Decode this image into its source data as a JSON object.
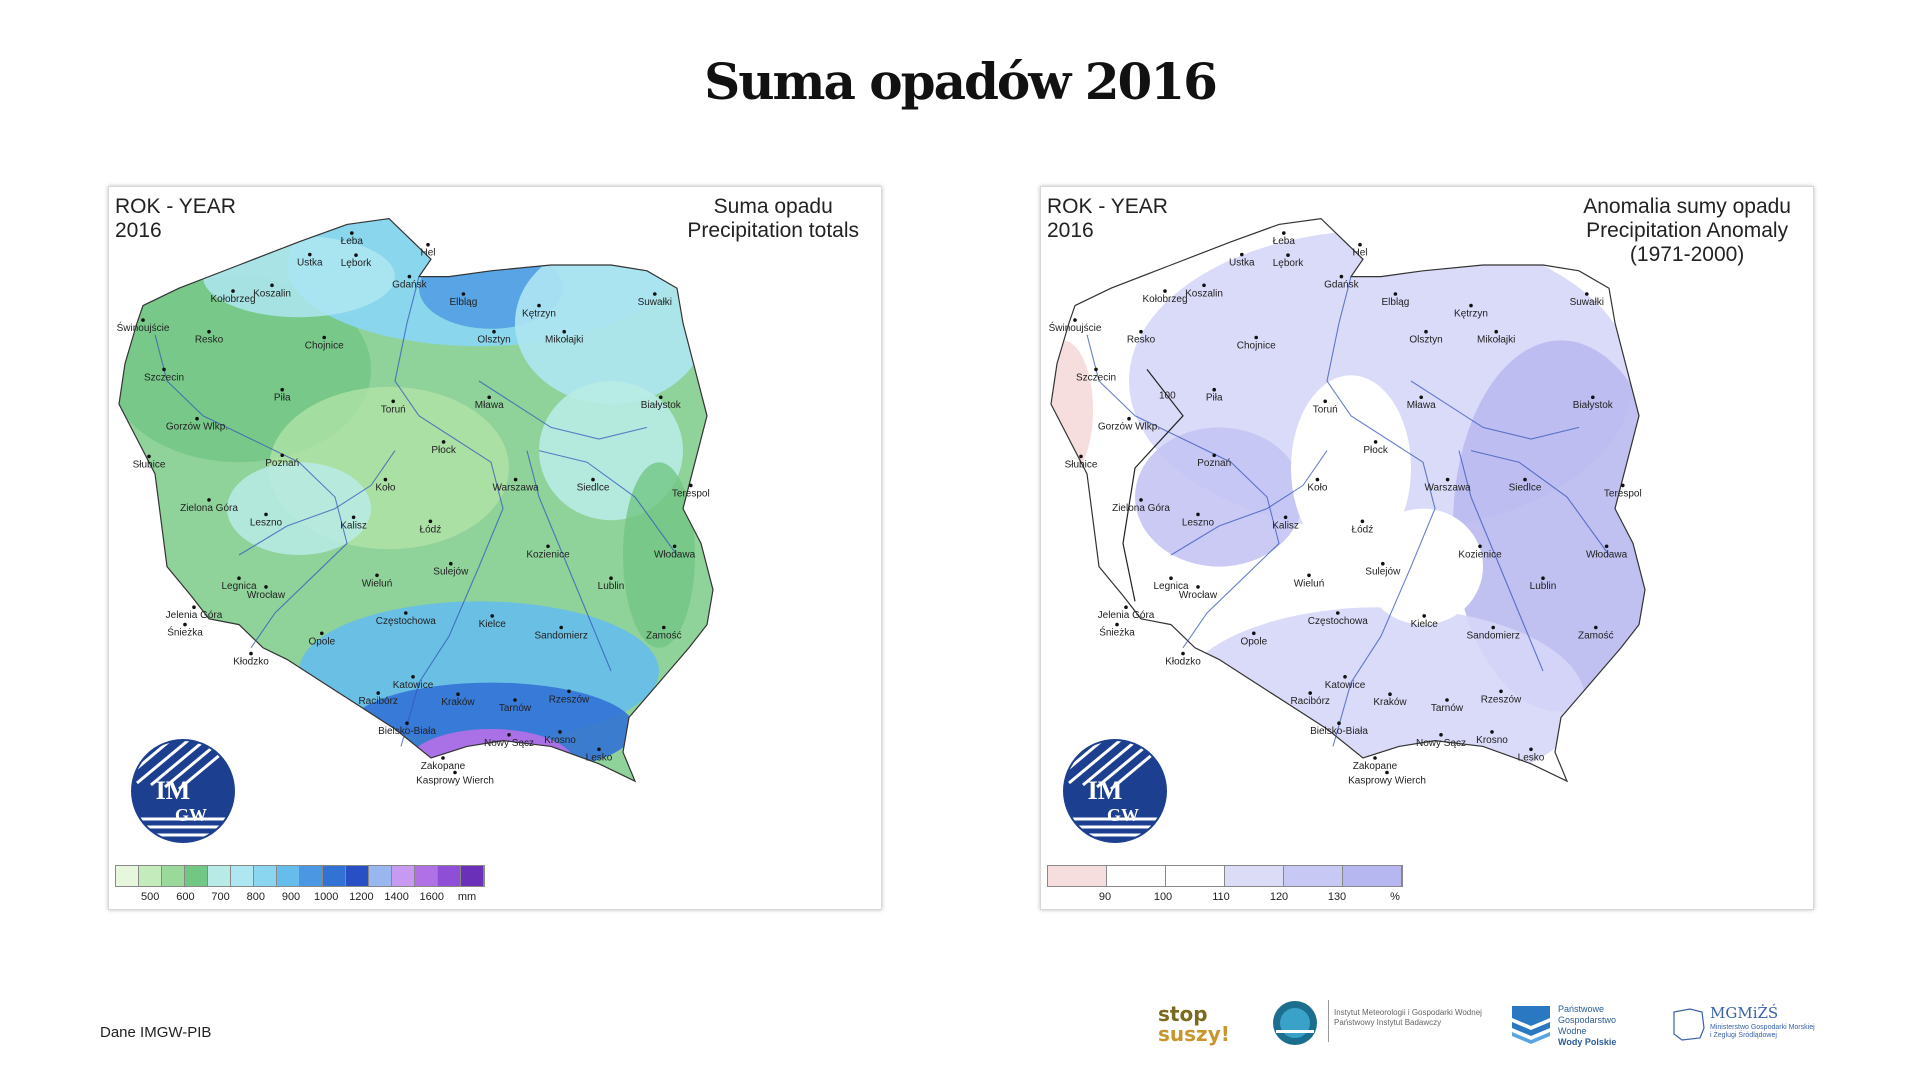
{
  "page_title": "Suma opadów 2016",
  "source_note": "Dane IMGW-PIB",
  "left_map": {
    "year_label_line1": "ROK - YEAR",
    "year_label_line2": "2016",
    "title_line1": "Suma opadu",
    "title_line2": "Precipitation totals",
    "logo_text_top": "IM",
    "logo_text_bottom": "GW",
    "legend_colors": [
      "#e7f7dc",
      "#c4ebbb",
      "#9ad99a",
      "#72c784",
      "#b8ebe6",
      "#aee6f2",
      "#8ad6f0",
      "#66bdec",
      "#4b97e2",
      "#3372d5",
      "#2850c4",
      "#9ab6ee",
      "#c69af0",
      "#b070e6",
      "#8f4ed6",
      "#6a30b8"
    ],
    "legend_ticks": [
      "500",
      "600",
      "700",
      "800",
      "900",
      "1000",
      "1200",
      "1400",
      "1600",
      "mm"
    ]
  },
  "right_map": {
    "year_label_line1": "ROK - YEAR",
    "year_label_line2": "2016",
    "title_line1": "Anomalia sumy opadu",
    "title_line2": "Precipitation Anomaly",
    "title_line3": "(1971-2000)",
    "logo_text_top": "IM",
    "logo_text_bottom": "GW",
    "contour_label": "100",
    "legend_colors": [
      "#f7dede",
      "#ffffff",
      "#ffffff",
      "#dcdcf7",
      "#c8c8f4",
      "#b6b6f0"
    ],
    "legend_ticks": [
      "90",
      "100",
      "110",
      "120",
      "130",
      "%"
    ]
  },
  "cities": [
    {
      "name": "Łeba",
      "nx": 0.388,
      "ny": 0.045
    },
    {
      "name": "Hel",
      "nx": 0.515,
      "ny": 0.065
    },
    {
      "name": "Ustka",
      "nx": 0.318,
      "ny": 0.082
    },
    {
      "name": "Lębork",
      "nx": 0.395,
      "ny": 0.083
    },
    {
      "name": "Gdańsk",
      "nx": 0.484,
      "ny": 0.12
    },
    {
      "name": "Koszalin",
      "nx": 0.255,
      "ny": 0.135
    },
    {
      "name": "Kołobrzeg",
      "nx": 0.19,
      "ny": 0.145
    },
    {
      "name": "Elbląg",
      "nx": 0.574,
      "ny": 0.15
    },
    {
      "name": "Kętrzyn",
      "nx": 0.7,
      "ny": 0.17
    },
    {
      "name": "Suwałki",
      "nx": 0.893,
      "ny": 0.15
    },
    {
      "name": "Świnoujście",
      "nx": 0.04,
      "ny": 0.195
    },
    {
      "name": "Resko",
      "nx": 0.15,
      "ny": 0.215
    },
    {
      "name": "Olsztyn",
      "nx": 0.625,
      "ny": 0.215
    },
    {
      "name": "Mikołajki",
      "nx": 0.742,
      "ny": 0.215
    },
    {
      "name": "Chojnice",
      "nx": 0.342,
      "ny": 0.225
    },
    {
      "name": "Szczecin",
      "nx": 0.075,
      "ny": 0.28
    },
    {
      "name": "Piła",
      "nx": 0.272,
      "ny": 0.315
    },
    {
      "name": "Toruń",
      "nx": 0.457,
      "ny": 0.335
    },
    {
      "name": "Mława",
      "nx": 0.617,
      "ny": 0.328
    },
    {
      "name": "Białystok",
      "nx": 0.903,
      "ny": 0.328
    },
    {
      "name": "Gorzów Wlkp.",
      "nx": 0.13,
      "ny": 0.365
    },
    {
      "name": "Płock",
      "nx": 0.541,
      "ny": 0.405
    },
    {
      "name": "Słubice",
      "nx": 0.05,
      "ny": 0.43
    },
    {
      "name": "Poznań",
      "nx": 0.272,
      "ny": 0.428
    },
    {
      "name": "Koło",
      "nx": 0.444,
      "ny": 0.47
    },
    {
      "name": "Siedlce",
      "nx": 0.79,
      "ny": 0.47
    },
    {
      "name": "Terespol",
      "nx": 0.953,
      "ny": 0.48
    },
    {
      "name": "Warszawa",
      "nx": 0.661,
      "ny": 0.47
    },
    {
      "name": "Zielona Góra",
      "nx": 0.15,
      "ny": 0.505
    },
    {
      "name": "Leszno",
      "nx": 0.245,
      "ny": 0.53
    },
    {
      "name": "Kalisz",
      "nx": 0.391,
      "ny": 0.535
    },
    {
      "name": "Łódź",
      "nx": 0.519,
      "ny": 0.542
    },
    {
      "name": "Włodawa",
      "nx": 0.926,
      "ny": 0.585
    },
    {
      "name": "Kozienice",
      "nx": 0.715,
      "ny": 0.585
    },
    {
      "name": "Sulejów",
      "nx": 0.553,
      "ny": 0.615
    },
    {
      "name": "Legnica",
      "nx": 0.2,
      "ny": 0.64
    },
    {
      "name": "Lublin",
      "nx": 0.82,
      "ny": 0.64
    },
    {
      "name": "Wrocław",
      "nx": 0.245,
      "ny": 0.655
    },
    {
      "name": "Wieluń",
      "nx": 0.43,
      "ny": 0.635
    },
    {
      "name": "Jelenia Góra",
      "nx": 0.125,
      "ny": 0.69
    },
    {
      "name": "Częstochowa",
      "nx": 0.478,
      "ny": 0.7
    },
    {
      "name": "Śnieżka",
      "nx": 0.11,
      "ny": 0.72
    },
    {
      "name": "Kielce",
      "nx": 0.622,
      "ny": 0.705
    },
    {
      "name": "Sandomierz",
      "nx": 0.737,
      "ny": 0.725
    },
    {
      "name": "Zamość",
      "nx": 0.908,
      "ny": 0.725
    },
    {
      "name": "Opole",
      "nx": 0.338,
      "ny": 0.735
    },
    {
      "name": "Kłodzko",
      "nx": 0.22,
      "ny": 0.77
    },
    {
      "name": "Katowice",
      "nx": 0.49,
      "ny": 0.81
    },
    {
      "name": "Racibórz",
      "nx": 0.432,
      "ny": 0.838
    },
    {
      "name": "Kraków",
      "nx": 0.565,
      "ny": 0.84
    },
    {
      "name": "Rzeszów",
      "nx": 0.75,
      "ny": 0.835
    },
    {
      "name": "Tarnów",
      "nx": 0.66,
      "ny": 0.85
    },
    {
      "name": "Bielsko-Biała",
      "nx": 0.48,
      "ny": 0.89
    },
    {
      "name": "Nowy Sącz",
      "nx": 0.65,
      "ny": 0.91
    },
    {
      "name": "Krosno",
      "nx": 0.735,
      "ny": 0.905
    },
    {
      "name": "Lesko",
      "nx": 0.8,
      "ny": 0.935
    },
    {
      "name": "Zakopane",
      "nx": 0.54,
      "ny": 0.95
    },
    {
      "name": "Kasprowy Wierch",
      "nx": 0.56,
      "ny": 0.975
    }
  ],
  "partners": {
    "stop_line1": "stop",
    "stop_line2": "suszy!",
    "imgw_line1": "Instytut Meteorologii i Gospodarki Wodnej",
    "imgw_line2": "Państwowy Instytut Badawczy",
    "wp_line1": "Państwowe",
    "wp_line2": "Gospodarstwo Wodne",
    "wp_line3": "Wody Polskie",
    "mgm_title": "MGMiŻŚ",
    "mgm_line1": "Ministerstwo Gospodarki Morskiej",
    "mgm_line2": "i Żeglugi Śródlądowej"
  }
}
